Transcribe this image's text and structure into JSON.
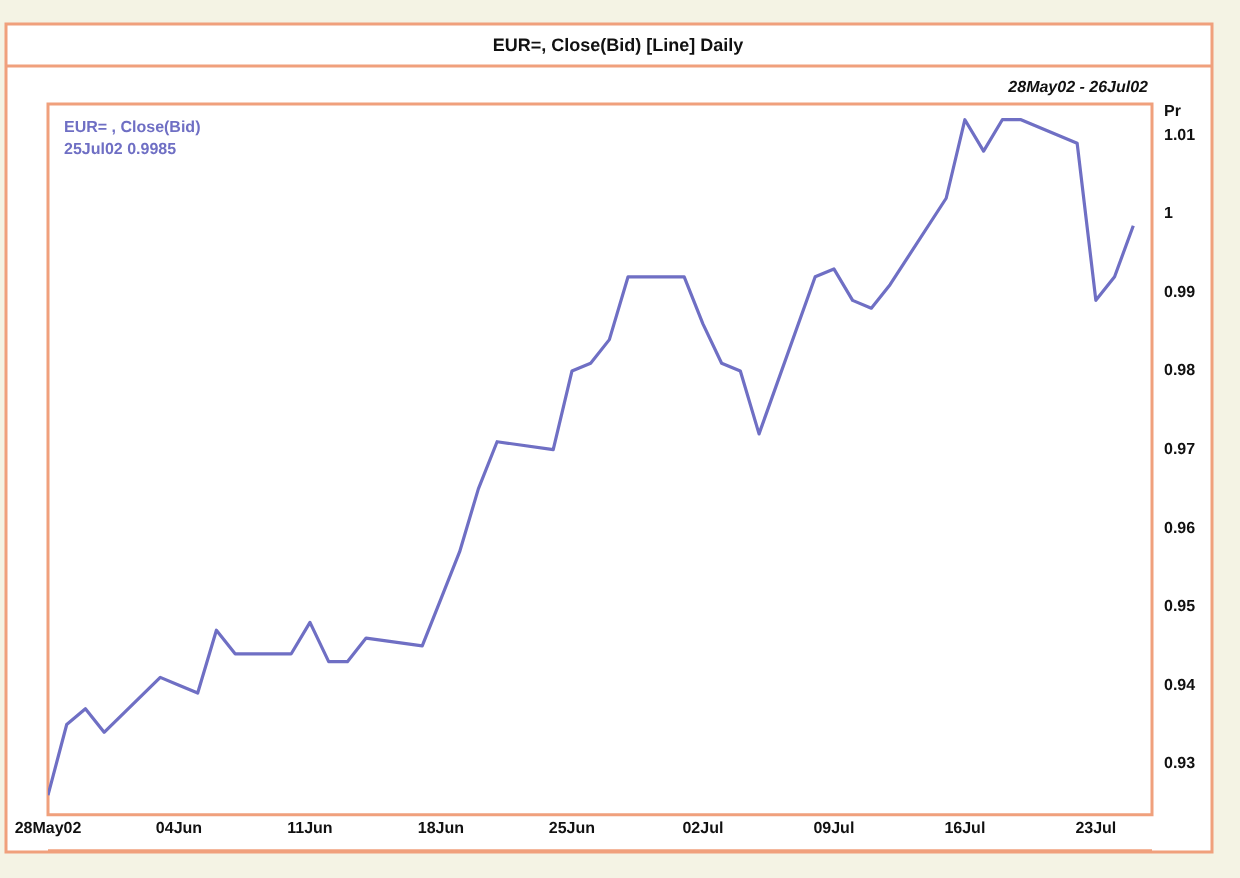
{
  "chart_data": {
    "type": "line",
    "title": "EUR=, Close(Bid) [Line] Daily",
    "subtitle": "28May02 - 26Jul02",
    "ylabel": "Pr",
    "annotations": [
      "25Jul02 0.9985"
    ],
    "x": [
      "--05-28",
      "--05-29",
      "--05-30",
      "--05-31",
      "--06-03",
      "--06-04",
      "--06-05",
      "--06-06",
      "--06-07",
      "--06-10",
      "--06-11",
      "--06-12",
      "--06-13",
      "--06-14",
      "--06-17",
      "--06-18",
      "--06-19",
      "--06-20",
      "--06-21",
      "--06-24",
      "--06-25",
      "--06-26",
      "--06-27",
      "--06-28",
      "--07-01",
      "--07-02",
      "--07-03",
      "--07-04",
      "--07-05",
      "--07-08",
      "--07-09",
      "--07-10",
      "--07-11",
      "--07-12",
      "--07-15",
      "--07-16",
      "--07-17",
      "--07-18",
      "--07-19",
      "--07-22",
      "--07-23",
      "--07-24",
      "--07-25"
    ],
    "series": [
      {
        "name": "EUR= , Close(Bid)",
        "color": "#6f6fc4",
        "values": [
          0.926,
          0.935,
          0.937,
          0.934,
          0.941,
          0.94,
          0.939,
          0.947,
          0.944,
          0.944,
          0.948,
          0.943,
          0.943,
          0.946,
          0.945,
          0.951,
          0.957,
          0.965,
          0.971,
          0.97,
          0.98,
          0.981,
          0.984,
          0.992,
          0.992,
          0.986,
          0.981,
          0.98,
          0.972,
          0.992,
          0.993,
          0.989,
          0.988,
          0.991,
          1.002,
          1.012,
          1.008,
          1.012,
          1.012,
          1.009,
          0.989,
          0.992,
          0.9985
        ]
      }
    ],
    "xlim": [
      "--05-28",
      "--07-26"
    ],
    "xticks": [
      {
        "value": "--05-28",
        "label": "28May02"
      },
      {
        "value": "--06-04",
        "label": "04Jun"
      },
      {
        "value": "--06-11",
        "label": "11Jun"
      },
      {
        "value": "--06-18",
        "label": "18Jun"
      },
      {
        "value": "--06-25",
        "label": "25Jun"
      },
      {
        "value": "--07-02",
        "label": "02Jul"
      },
      {
        "value": "--07-09",
        "label": "09Jul"
      },
      {
        "value": "--07-16",
        "label": "16Jul"
      },
      {
        "value": "--07-23",
        "label": "23Jul"
      }
    ],
    "ylim": [
      0.9235,
      1.014
    ],
    "yticks": [
      0.93,
      0.94,
      0.95,
      0.96,
      0.97,
      0.98,
      0.99,
      1,
      1.01
    ],
    "grid": false,
    "legend": "top left",
    "marker": "none",
    "line_style": "solid"
  }
}
